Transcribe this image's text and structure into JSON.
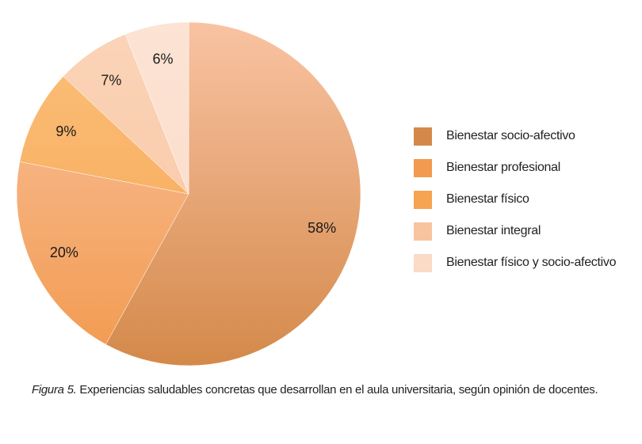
{
  "chart_data": {
    "type": "pie",
    "title": "",
    "slices": [
      {
        "label": "Bienestar socio-afectivo",
        "value": 58,
        "display": "58%",
        "color": "#d4894a",
        "light": "#f9c3a2"
      },
      {
        "label": "Bienestar profesional",
        "value": 20,
        "display": "20%",
        "color": "#f29a4e",
        "light": "#f9c3a2"
      },
      {
        "label": "Bienestar físico",
        "value": 9,
        "display": "9%",
        "color": "#f6a452",
        "light": "#fbc07a"
      },
      {
        "label": "Bienestar integral",
        "value": 7,
        "display": "7%",
        "color": "#f8c4a0",
        "light": "#fbd4b8"
      },
      {
        "label": "Bienestar físico y socio-afectivo",
        "value": 6,
        "display": "6%",
        "color": "#fbdac6",
        "light": "#fce3d4"
      }
    ],
    "legend_position": "right"
  },
  "caption": {
    "prefix": "Figura 5.",
    "text": " Experiencias saludables concretas que desarrollan en el aula universitaria, según opinión de docentes."
  }
}
